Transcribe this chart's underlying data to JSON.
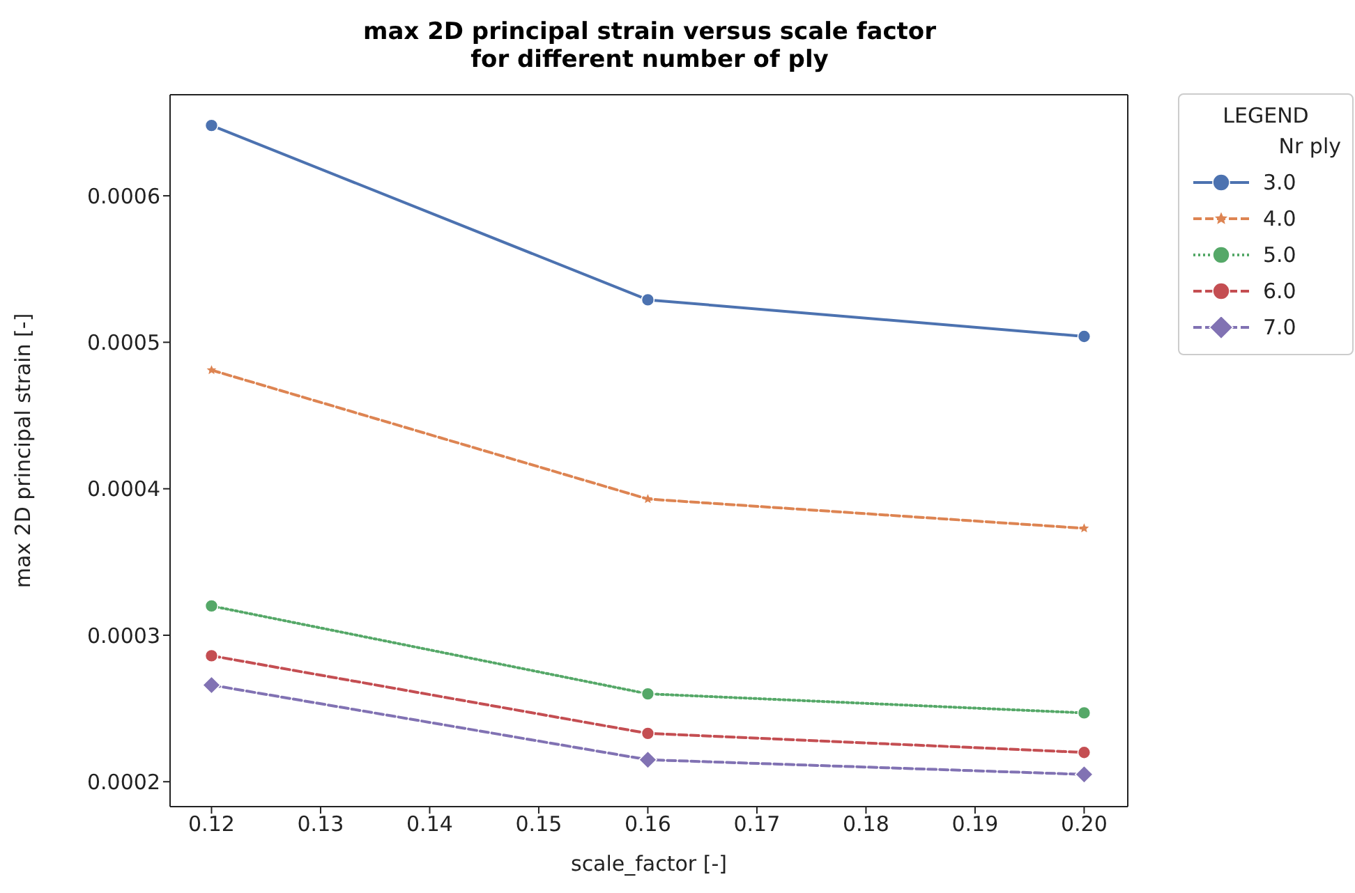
{
  "chart_data": {
    "type": "line",
    "title": "max 2D principal strain versus scale factor\nfor different number of ply",
    "xlabel": "scale_factor [-]",
    "ylabel": "max 2D principal strain [-]",
    "legend_title": "LEGEND",
    "annotations": [
      "Nr ply"
    ],
    "x": [
      0.12,
      0.16,
      0.2
    ],
    "series": [
      {
        "name": "3.0",
        "color": "#4c72b0",
        "values": [
          0.000648,
          0.000529,
          0.000504
        ],
        "marker": "circle",
        "line_style": "solid"
      },
      {
        "name": "4.0",
        "color": "#dd8452",
        "values": [
          0.000481,
          0.000393,
          0.000373
        ],
        "marker": "star",
        "line_style": "dashed"
      },
      {
        "name": "5.0",
        "color": "#55a868",
        "values": [
          0.00032,
          0.00026,
          0.000247
        ],
        "marker": "circle",
        "line_style": "dotted"
      },
      {
        "name": "6.0",
        "color": "#c44e52",
        "values": [
          0.000286,
          0.000233,
          0.00022
        ],
        "marker": "circle",
        "line_style": "dashed"
      },
      {
        "name": "7.0",
        "color": "#8172b3",
        "values": [
          0.000266,
          0.000215,
          0.000205
        ],
        "marker": "diamond",
        "line_style": "dashed"
      }
    ],
    "xlim": [
      0.1162,
      0.204
    ],
    "xticks": [
      0.12,
      0.13,
      0.14,
      0.15,
      0.16,
      0.17,
      0.18,
      0.19,
      {
        "value": 0.2,
        "label": "0.20"
      }
    ],
    "ylim": [
      0.000183,
      0.000669
    ],
    "yticks": [
      0.0002,
      0.0003,
      0.0004,
      0.0005,
      0.0006
    ],
    "grid": false,
    "legend": "top right"
  }
}
